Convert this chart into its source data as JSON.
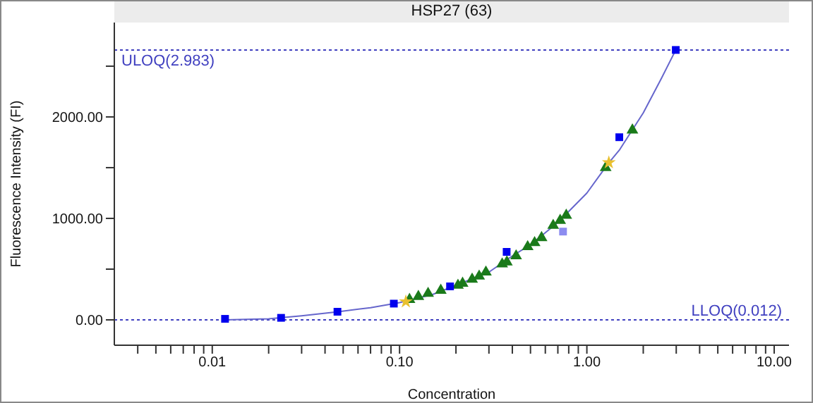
{
  "chart_data": {
    "type": "scatter",
    "title": "HSP27 (63)",
    "xlabel": "Concentration",
    "ylabel": "Fluorescence Intensity (FI)",
    "log": "x",
    "grid": false,
    "xlim": [
      0.003,
      12
    ],
    "ylim": [
      -250,
      2930
    ],
    "xticks": [
      {
        "value": 0.004,
        "label": null
      },
      {
        "value": 0.005,
        "label": null
      },
      {
        "value": 0.006,
        "label": null
      },
      {
        "value": 0.007,
        "label": null
      },
      {
        "value": 0.008,
        "label": null
      },
      {
        "value": 0.009,
        "label": null
      },
      {
        "value": 0.01,
        "label": "0.01"
      },
      {
        "value": 0.02,
        "label": null
      },
      {
        "value": 0.03,
        "label": null
      },
      {
        "value": 0.04,
        "label": null
      },
      {
        "value": 0.05,
        "label": null
      },
      {
        "value": 0.06,
        "label": null
      },
      {
        "value": 0.07,
        "label": null
      },
      {
        "value": 0.08,
        "label": null
      },
      {
        "value": 0.09,
        "label": null
      },
      {
        "value": 0.1,
        "label": "0.10"
      },
      {
        "value": 0.2,
        "label": null
      },
      {
        "value": 0.3,
        "label": null
      },
      {
        "value": 0.4,
        "label": null
      },
      {
        "value": 0.5,
        "label": null
      },
      {
        "value": 0.6,
        "label": null
      },
      {
        "value": 0.7,
        "label": null
      },
      {
        "value": 0.8,
        "label": null
      },
      {
        "value": 0.9,
        "label": null
      },
      {
        "value": 1,
        "label": "1.00"
      },
      {
        "value": 2,
        "label": null
      },
      {
        "value": 3,
        "label": null
      },
      {
        "value": 4,
        "label": null
      },
      {
        "value": 5,
        "label": null
      },
      {
        "value": 6,
        "label": null
      },
      {
        "value": 7,
        "label": null
      },
      {
        "value": 8,
        "label": null
      },
      {
        "value": 9,
        "label": null
      },
      {
        "value": 10,
        "label": "10.00"
      }
    ],
    "yticks": [
      {
        "value": 0,
        "label": "0.00"
      },
      {
        "value": 500,
        "label": null
      },
      {
        "value": 1000,
        "label": "1000.00"
      },
      {
        "value": 1500,
        "label": null
      },
      {
        "value": 2000,
        "label": "2000.00"
      },
      {
        "value": 2500,
        "label": null
      }
    ],
    "ref_lines": [
      {
        "axis": "y",
        "value": 2660,
        "label": "ULOQ(2.983)",
        "color": "#4040c0",
        "line_style": "dotted"
      },
      {
        "axis": "y",
        "value": 0,
        "label": "LLOQ(0.012)",
        "color": "#4040c0",
        "line_style": "dotted"
      }
    ],
    "series": [
      {
        "type": "line",
        "color": "#6666cc",
        "marker": "none",
        "x": [
          0.0117,
          0.02,
          0.03,
          0.047,
          0.07,
          0.1,
          0.15,
          0.2,
          0.3,
          0.4,
          0.5,
          0.7,
          1.0,
          1.3,
          1.5,
          2.0,
          2.5,
          2.983
        ],
        "values": [
          0,
          10,
          40,
          80,
          120,
          170,
          250,
          340,
          470,
          630,
          740,
          960,
          1250,
          1540,
          1680,
          2040,
          2380,
          2660
        ]
      },
      {
        "color": "#1a7a1a",
        "marker": "triangle",
        "x": [
          0.113,
          0.126,
          0.142,
          0.166,
          0.205,
          0.217,
          0.244,
          0.266,
          0.289,
          0.353,
          0.374,
          0.419,
          0.483,
          0.526,
          0.573,
          0.661,
          0.72,
          0.776,
          1.26,
          1.75
        ],
        "values": [
          200,
          230,
          260,
          290,
          340,
          360,
          400,
          430,
          470,
          550,
          570,
          630,
          720,
          760,
          810,
          930,
          980,
          1030,
          1500,
          1870
        ]
      },
      {
        "color": "#e8c030",
        "marker": "star",
        "x": [
          0.108,
          1.31
        ],
        "values": [
          180,
          1550
        ]
      },
      {
        "color": "#0000ee",
        "marker": "square",
        "x": [
          0.0117,
          0.0233,
          0.0466,
          0.0932,
          0.186,
          0.373,
          1.49,
          2.983
        ],
        "values": [
          10,
          20,
          80,
          160,
          330,
          670,
          1800,
          2660
        ]
      },
      {
        "color": "#8c8cf0",
        "marker": "square",
        "x": [
          0.746
        ],
        "values": [
          870
        ]
      }
    ]
  }
}
